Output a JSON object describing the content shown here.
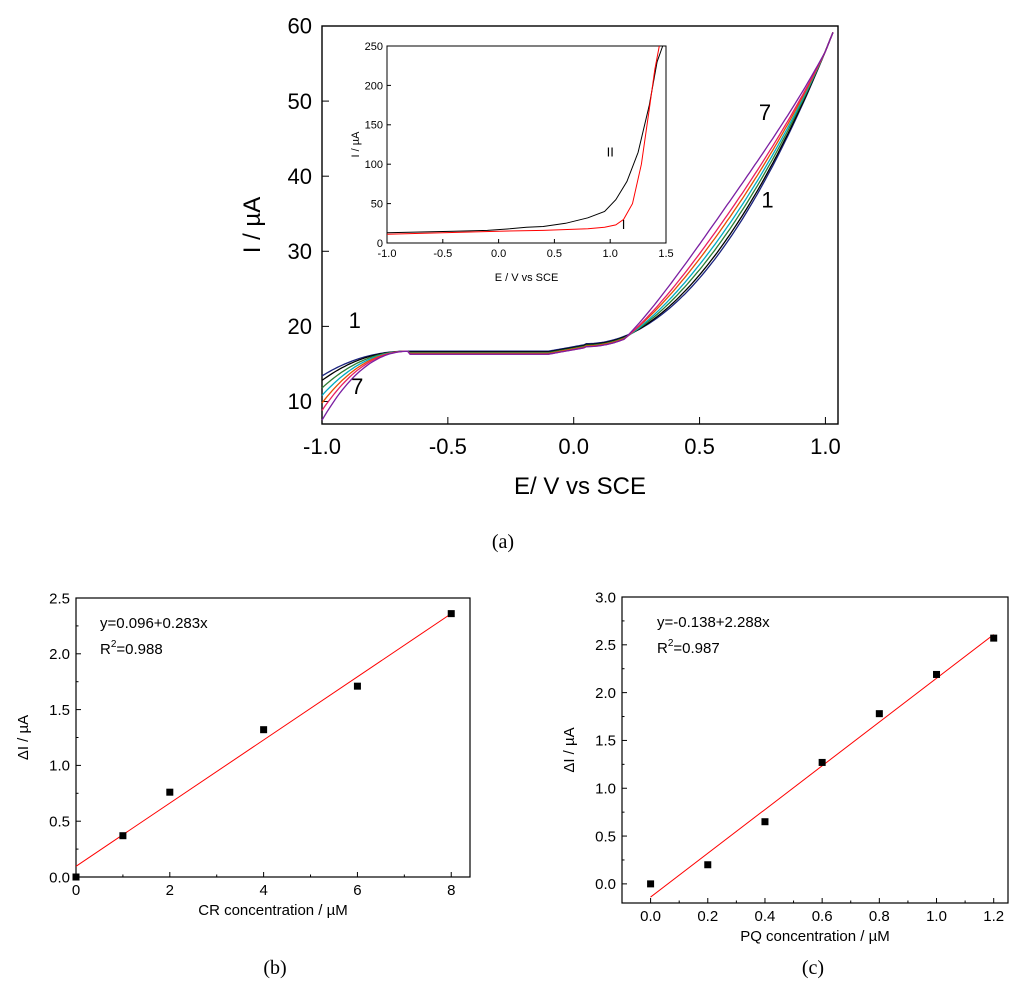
{
  "chart_data": [
    {
      "id": "a",
      "type": "line",
      "caption": "(a)",
      "xlabel": "E/ V vs SCE",
      "ylabel": "I / µA",
      "xlim": [
        -1.0,
        1.05
      ],
      "ylim": [
        7,
        60
      ],
      "xticks": [
        -1.0,
        -0.5,
        0.0,
        0.5,
        1.0
      ],
      "xtick_labels": [
        "-1.0",
        "-0.5",
        "0.0",
        "0.5",
        "1.0"
      ],
      "yticks": [
        10,
        20,
        30,
        40,
        50,
        60
      ],
      "ytick_labels": [
        "10",
        "20",
        "30",
        "40",
        "50",
        "60"
      ],
      "curve_labels": [
        {
          "text": "1",
          "x": -0.87,
          "y": 19.8
        },
        {
          "text": "7",
          "x": -0.86,
          "y": 11.0
        },
        {
          "text": "7",
          "x": 0.76,
          "y": 47.5
        },
        {
          "text": "1",
          "x": 0.77,
          "y": 35.8
        }
      ],
      "series": [
        {
          "color": "#1a237e",
          "start": 13.4,
          "mid": 16.7,
          "high": 36.0,
          "values_shape": "curve-1"
        },
        {
          "color": "#000000",
          "start": 12.8,
          "mid": 16.6,
          "high": 37.0
        },
        {
          "color": "#2e7d32",
          "start": 11.8,
          "mid": 16.5,
          "high": 38.5
        },
        {
          "color": "#00acc1",
          "start": 10.8,
          "mid": 16.4,
          "high": 40.0
        },
        {
          "color": "#e65100",
          "start": 9.8,
          "mid": 16.4,
          "high": 41.5
        },
        {
          "color": "#e91e63",
          "start": 8.8,
          "mid": 16.3,
          "high": 43.0
        },
        {
          "color": "#7b1fa2",
          "start": 7.5,
          "mid": 16.3,
          "high": 45.5
        }
      ],
      "inset": {
        "type": "line",
        "xlabel": "E / V vs SCE",
        "ylabel": "I / µA",
        "xlim": [
          -1.0,
          1.5
        ],
        "ylim": [
          0,
          250
        ],
        "xticks": [
          -1.0,
          -0.5,
          0.0,
          0.5,
          1.0,
          1.5
        ],
        "xtick_labels": [
          "-1.0",
          "-0.5",
          "0.0",
          "0.5",
          "1.0",
          "1.5"
        ],
        "yticks": [
          0,
          50,
          100,
          150,
          200,
          250
        ],
        "ytick_labels": [
          "0",
          "50",
          "100",
          "150",
          "200",
          "250"
        ],
        "labels": [
          {
            "text": "II",
            "x": 1.0,
            "y": 110
          },
          {
            "text": "I",
            "x": 1.12,
            "y": 18
          }
        ],
        "series": [
          {
            "name": "II",
            "color": "#000000",
            "x": [
              -1.0,
              -0.7,
              -0.4,
              -0.1,
              0.1,
              0.25,
              0.4,
              0.6,
              0.8,
              0.95,
              1.05,
              1.15,
              1.25,
              1.35,
              1.42,
              1.47
            ],
            "y": [
              13,
              14,
              15,
              16,
              18,
              20,
              21,
              25,
              32,
              40,
              55,
              78,
              115,
              175,
              230,
              252
            ]
          },
          {
            "name": "I",
            "color": "#ff0000",
            "x": [
              -1.0,
              -0.5,
              0.0,
              0.4,
              0.8,
              0.95,
              1.05,
              1.12,
              1.2,
              1.28,
              1.35,
              1.4,
              1.44
            ],
            "y": [
              11,
              13,
              15,
              16,
              18,
              20,
              23,
              30,
              50,
              100,
              170,
              220,
              250
            ]
          }
        ]
      }
    },
    {
      "id": "b",
      "type": "scatter",
      "caption": "(b)",
      "xlabel": "CR concentration / µM",
      "ylabel": "ΔI / µA",
      "xlim": [
        0,
        8.4
      ],
      "ylim": [
        0,
        2.5
      ],
      "xticks": [
        0,
        2,
        4,
        6,
        8
      ],
      "xtick_labels": [
        "0",
        "2",
        "4",
        "6",
        "8"
      ],
      "yticks": [
        0.0,
        0.5,
        1.0,
        1.5,
        2.0,
        2.5
      ],
      "ytick_labels": [
        "0.0",
        "0.5",
        "1.0",
        "1.5",
        "2.0",
        "2.5"
      ],
      "x": [
        0,
        1,
        2,
        4,
        6,
        8
      ],
      "y": [
        0.0,
        0.37,
        0.76,
        1.32,
        1.71,
        2.36
      ],
      "fit": {
        "intercept": 0.096,
        "slope": 0.283,
        "x_range": [
          0,
          8
        ],
        "color": "#ff0000"
      },
      "equation": "y=0.096+0.283x",
      "r2_label": "R",
      "r2_sup": "2",
      "r2_value": "=0.988"
    },
    {
      "id": "c",
      "type": "scatter",
      "caption": "(c)",
      "xlabel": "PQ concentration / µM",
      "ylabel": "ΔI / µA",
      "xlim": [
        -0.1,
        1.25
      ],
      "ylim": [
        -0.2,
        3.0
      ],
      "xticks": [
        0.0,
        0.2,
        0.4,
        0.6,
        0.8,
        1.0,
        1.2
      ],
      "xtick_labels": [
        "0.0",
        "0.2",
        "0.4",
        "0.6",
        "0.8",
        "1.0",
        "1.2"
      ],
      "yticks": [
        0.0,
        0.5,
        1.0,
        1.5,
        2.0,
        2.5,
        3.0
      ],
      "ytick_labels": [
        "0.0",
        "0.5",
        "1.0",
        "1.5",
        "2.0",
        "2.5",
        "3.0"
      ],
      "x": [
        0.0,
        0.2,
        0.4,
        0.6,
        0.8,
        1.0,
        1.2
      ],
      "y": [
        0.0,
        0.2,
        0.65,
        1.27,
        1.78,
        2.19,
        2.57
      ],
      "fit": {
        "intercept": -0.138,
        "slope": 2.288,
        "x_range": [
          0.0,
          1.2
        ],
        "color": "#ff0000"
      },
      "equation": "y=-0.138+2.288x",
      "r2_label": "R",
      "r2_sup": "2",
      "r2_value": "=0.987"
    }
  ]
}
